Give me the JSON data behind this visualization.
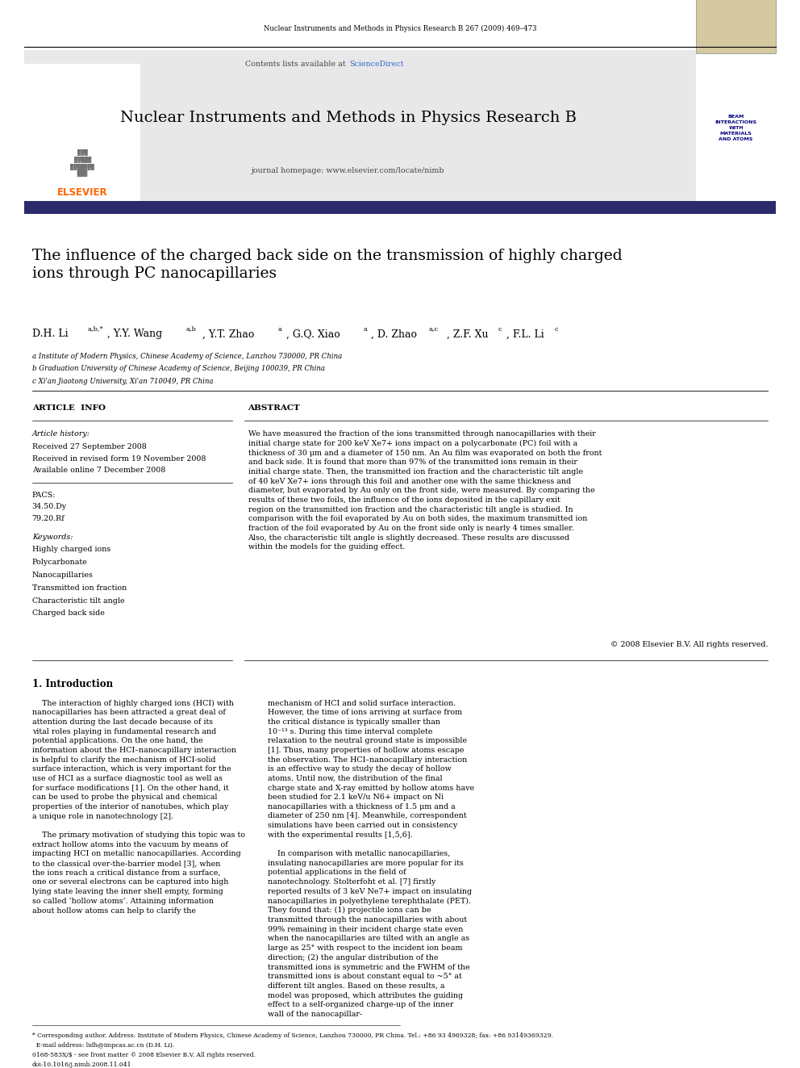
{
  "page_width": 9.92,
  "page_height": 13.23,
  "bg_color": "#ffffff",
  "journal_header_text": "Nuclear Instruments and Methods in Physics Research B 267 (2009) 469–473",
  "contents_text": "Contents lists available at ",
  "science_direct_text": "ScienceDirect",
  "journal_title": "Nuclear Instruments and Methods in Physics Research B",
  "journal_homepage": "journal homepage: www.elsevier.com/locate/nimb",
  "header_bg": "#e8e8e8",
  "elsevier_color": "#ff6600",
  "science_direct_color": "#3366cc",
  "article_title": "The influence of the charged back side on the transmission of highly charged\nions through PC nanocapillaries",
  "affil_a": "a Institute of Modern Physics, Chinese Academy of Science, Lanzhou 730000, PR China",
  "affil_b": "b Graduation University of Chinese Academy of Science, Beijing 100039, PR China",
  "affil_c": "c Xi'an Jiaotong University, Xi'an 710049, PR China",
  "section_article_info": "ARTICLE  INFO",
  "section_abstract": "ABSTRACT",
  "article_history_label": "Article history:",
  "received_1": "Received 27 September 2008",
  "received_2": "Received in revised form 19 November 2008",
  "available": "Available online 7 December 2008",
  "pacs_label": "PACS:",
  "pacs_1": "34.50.Dy",
  "pacs_2": "79.20.Rf",
  "keywords_label": "Keywords:",
  "keywords": [
    "Highly charged ions",
    "Polycarbonate",
    "Nanocapillaries",
    "Transmitted ion fraction",
    "Characteristic tilt angle",
    "Charged back side"
  ],
  "abstract_text": "We have measured the fraction of the ions transmitted through nanocapillaries with their initial charge state for 200 keV Xe7+ ions impact on a polycarbonate (PC) foil with a thickness of 30 μm and a diameter of 150 nm. An Au film was evaporated on both the front and back side. It is found that more than 97% of the transmitted ions remain in their initial charge state. Then, the transmitted ion fraction and the characteristic tilt angle of 40 keV Xe7+ ions through this foil and another one with the same thickness and diameter, but evaporated by Au only on the front side, were measured. By comparing the results of these two foils, the influence of the ions deposited in the capillary exit region on the transmitted ion fraction and the characteristic tilt angle is studied. In comparison with the foil evaporated by Au on both sides, the maximum transmitted ion fraction of the foil evaporated by Au on the front side only is nearly 4 times smaller. Also, the characteristic tilt angle is slightly decreased. These results are discussed within the models for the guiding effect.",
  "copyright_text": "© 2008 Elsevier B.V. All rights reserved.",
  "intro_heading": "1. Introduction",
  "intro_col1_p1": "The interaction of highly charged ions (HCI) with nanocapillaries has been attracted a great deal of attention during the last decade because of its vital roles playing in fundamental research and potential applications. On the one hand, the information about the HCI–nanocapillary interaction is helpful to clarify the mechanism of HCI-solid surface interaction, which is very important for the use of HCI as a surface diagnostic tool as well as for surface modifications [1]. On the other hand, it can be used to probe the physical and chemical properties of the interior of nanotubes, which play a unique role in nanotechnology [2].",
  "intro_col1_p2": "The primary motivation of studying this topic was to extract hollow atoms into the vacuum by means of impacting HCI on metallic nanocapillaries. According to the classical over-the-barrier model [3], when the ions reach a critical distance from a surface, one or several electrons can be captured into high lying state leaving the inner shell empty, forming so called ‘hollow atoms’. Attaining information about hollow atoms can help to clarify the",
  "intro_col2_p1": "mechanism of HCI and solid surface interaction. However, the time of ions arriving at surface from the critical distance is typically smaller than 10⁻¹³ s. During this time interval complete relaxation to the neutral ground state is impossible [1]. Thus, many properties of hollow atoms escape the observation. The HCI–nanocapillary interaction is an effective way to study the decay of hollow atoms. Until now, the distribution of the final charge state and X-ray emitted by hollow atoms have been studied for 2.1 keV/u N6+ impact on Ni nanocapillaries with a thickness of 1.5 μm and a diameter of 250 nm [4]. Meanwhile, correspondent simulations have been carried out in consistency with the experimental results [1,5,6].",
  "intro_col2_p2": "In comparison with metallic nanocapillaries, insulating nanocapillaries are more popular for its potential applications in the field of nanotechnology. Stolterfoht et al. [7] firstly reported results of 3 keV Ne7+ impact on insulating nanocapillaries in polyethylene terephthalate (PET). They found that: (1) projectile ions can be transmitted through the nanocapillaries with about 99% remaining in their incident charge state even when the nanocapillaries are tilted with an angle as large as 25° with respect to the incident ion beam direction; (2) the angular distribution of the transmitted ions is symmetric and the FWHM of the transmitted ions is about constant equal to ~5° at different tilt angles. Based on these results, a model was proposed, which attributes the guiding effect to a self-organized charge-up of the inner wall of the nanocapillar-",
  "footer_text1": "* Corresponding author. Address: Institute of Modern Physics, Chinese Academy of Science, Lanzhou 730000, PR China. Tel.: +86 93 4969328; fax: +86 93149369329.",
  "footer_text2": "  E-mail address: lidh@impcas.ac.cn (D.H. Li).",
  "footer_text3": "0168-583X/$ - see front matter © 2008 Elsevier B.V. All rights reserved.",
  "footer_text4": "doi:10.1016/j.nimb.2008.11.041",
  "beam_box_text": "BEAM\nINTERACTIONS\nWITH\nMATERIALS\nAND ATOMS",
  "dark_bar_color": "#2b2b6b"
}
